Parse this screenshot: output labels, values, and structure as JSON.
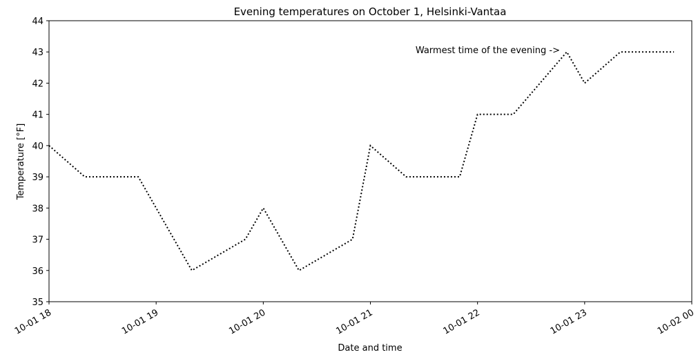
{
  "chart_data": {
    "type": "line",
    "title": "Evening temperatures on October 1, Helsinki-Vantaa",
    "x_label": "Date and time",
    "y_label": "Temperature [°F]",
    "annotation": "Warmest time of the evening ->",
    "x": [
      "10-01 18:00",
      "10-01 18:20",
      "10-01 18:50",
      "10-01 19:20",
      "10-01 19:50",
      "10-01 20:00",
      "10-01 20:20",
      "10-01 20:50",
      "10-01 21:00",
      "10-01 21:20",
      "10-01 21:50",
      "10-01 22:00",
      "10-01 22:20",
      "10-01 22:50",
      "10-01 23:00",
      "10-01 23:20",
      "10-01 23:50"
    ],
    "series": [
      {
        "color": "#000000",
        "values": [
          40,
          39,
          39,
          36,
          37,
          38,
          36,
          37,
          40,
          39,
          39,
          41,
          41,
          43,
          42,
          43,
          43
        ]
      }
    ],
    "xlim": [
      "10-01 18",
      "10-02 00"
    ],
    "xticks": [
      "10-01 18",
      "10-01 19",
      "10-01 20",
      "10-01 21",
      "10-01 22",
      "10-01 23",
      "10-02 00"
    ],
    "ylim": [
      35,
      44
    ],
    "yticks": [
      35,
      36,
      37,
      38,
      39,
      40,
      41,
      42,
      43,
      44
    ],
    "grid": false
  }
}
